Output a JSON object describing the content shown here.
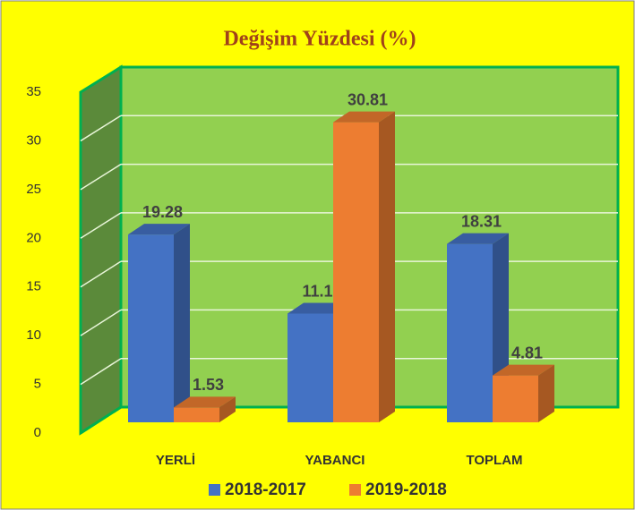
{
  "chart_data": {
    "type": "bar3d",
    "title": "Değişim Yüzdesi (%)",
    "categories": [
      "YERLİ",
      "YABANCI",
      "TOPLAM"
    ],
    "series": [
      {
        "name": "2018-2017",
        "color": "#4472c4",
        "values": [
          19.28,
          11.16,
          18.31
        ]
      },
      {
        "name": "2019-2018",
        "color": "#ed7d31",
        "values": [
          1.53,
          30.81,
          4.81
        ]
      }
    ],
    "ylim": [
      0,
      35
    ],
    "yticks": [
      0,
      5,
      10,
      15,
      20,
      25,
      30,
      35
    ],
    "grid": true
  }
}
